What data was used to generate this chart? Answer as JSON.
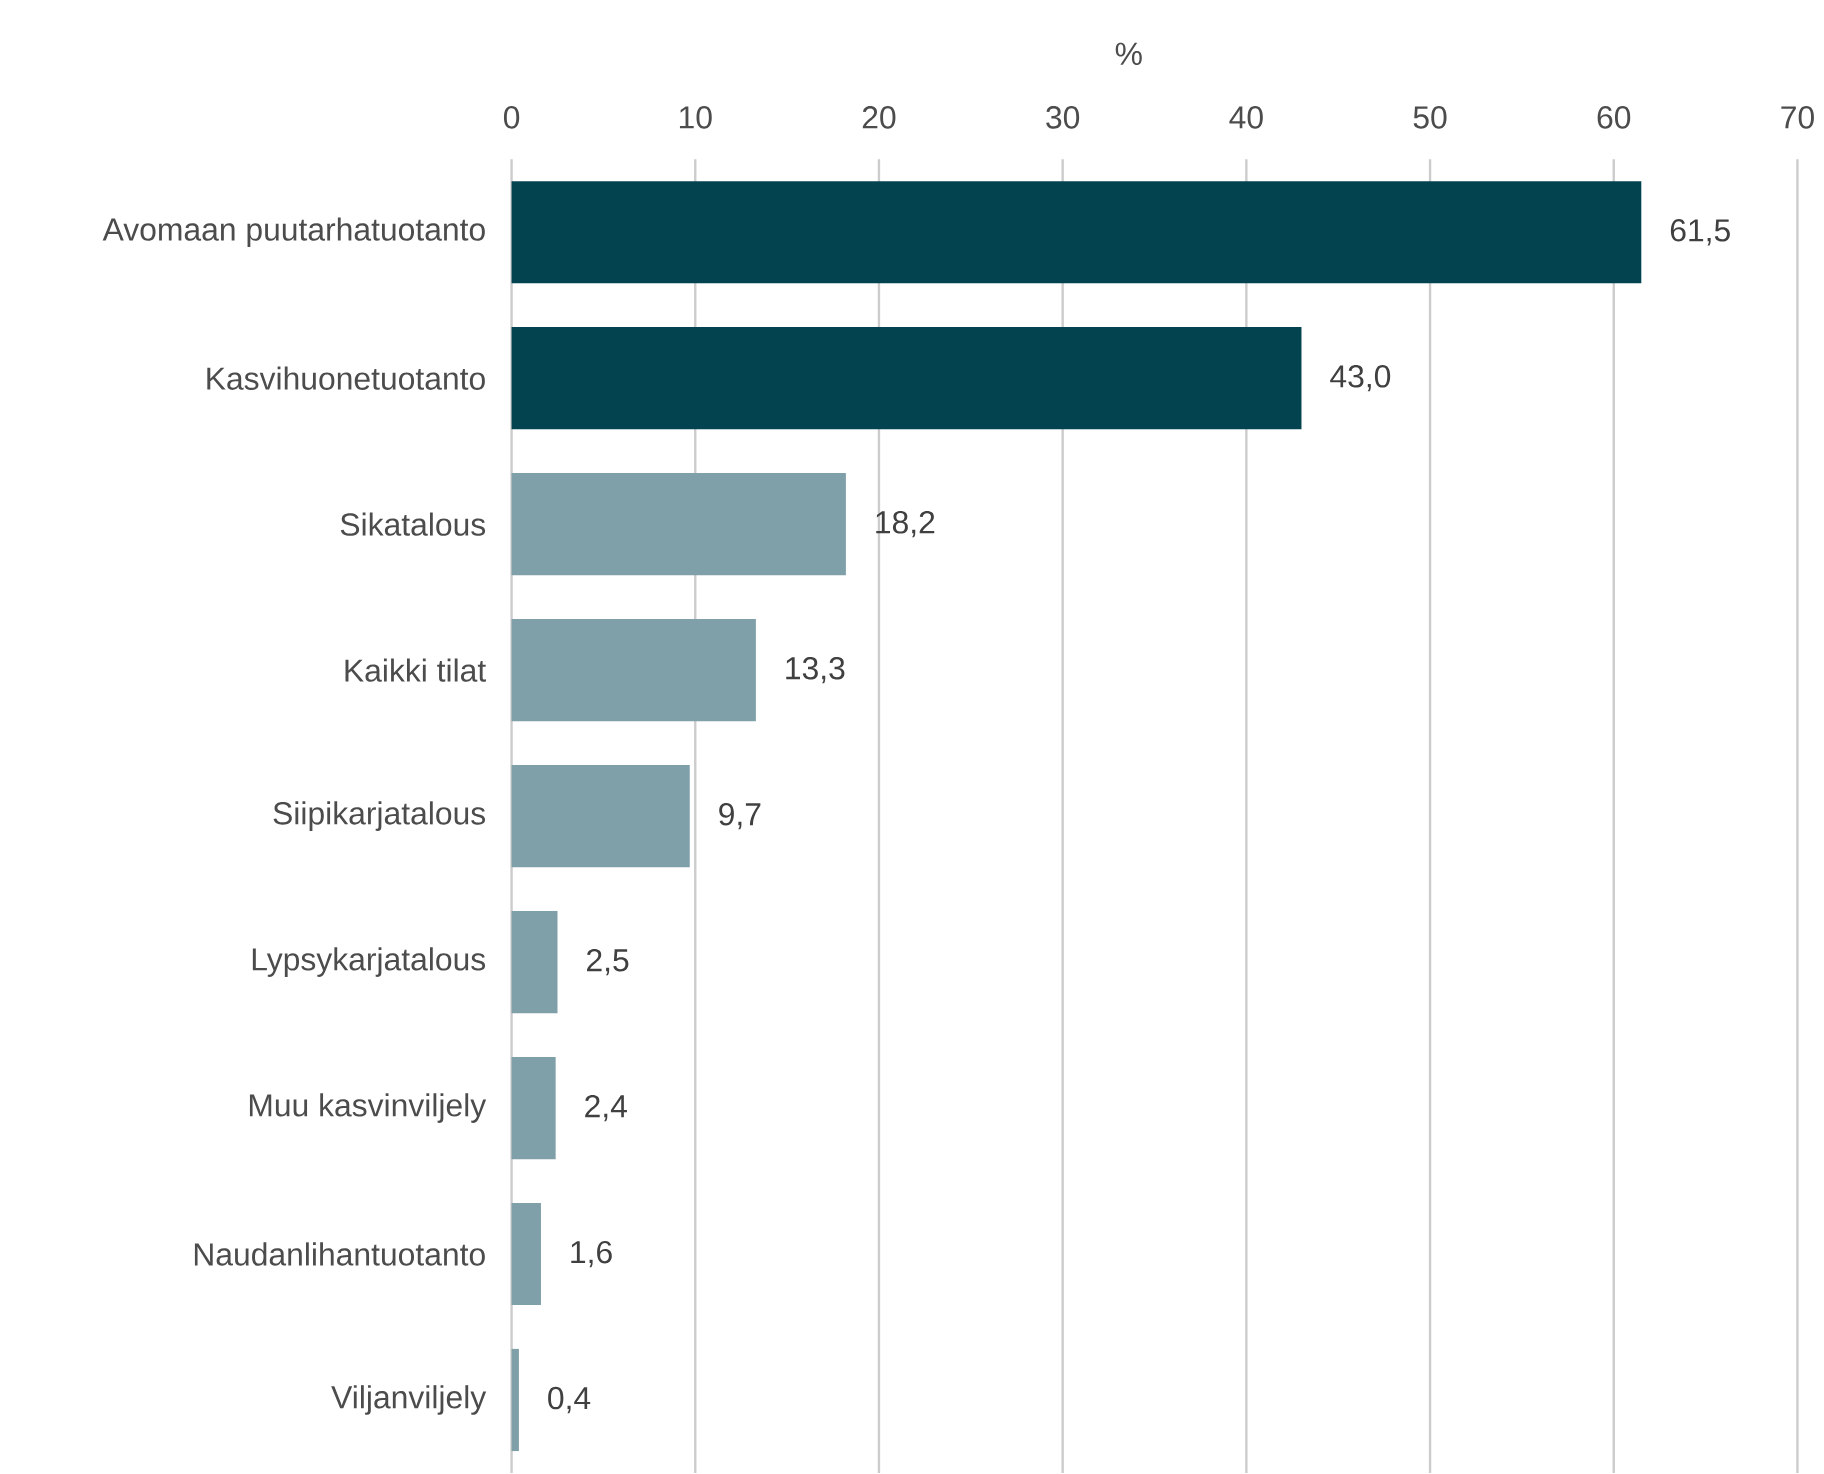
{
  "chart_data": {
    "type": "bar",
    "orientation": "horizontal",
    "xlabel": "%",
    "categories": [
      "Avomaan puutarhatuotanto",
      "Kasvihuonetuotanto",
      "Sikatalous",
      "Kaikki tilat",
      "Siipikarjatalous",
      "Lypsykarjatalous",
      "Muu kasvinviljely",
      "Naudanlihantuotanto",
      "Viljanviljely"
    ],
    "values": [
      61.5,
      43.0,
      18.2,
      13.3,
      9.7,
      2.5,
      2.4,
      1.6,
      0.4
    ],
    "value_labels": [
      "61,5",
      "43,0",
      "18,2",
      "13,3",
      "9,7",
      "2,5",
      "2,4",
      "1,6",
      "0,4"
    ],
    "colors": [
      "#03424f",
      "#03424f",
      "#7f9fa9",
      "#7f9fa9",
      "#7f9fa9",
      "#7f9fa9",
      "#7f9fa9",
      "#7f9fa9",
      "#7f9fa9"
    ],
    "xlim": [
      0,
      70
    ],
    "xticks": [
      0,
      10,
      20,
      30,
      40,
      50,
      60,
      70
    ],
    "grid": "x"
  }
}
